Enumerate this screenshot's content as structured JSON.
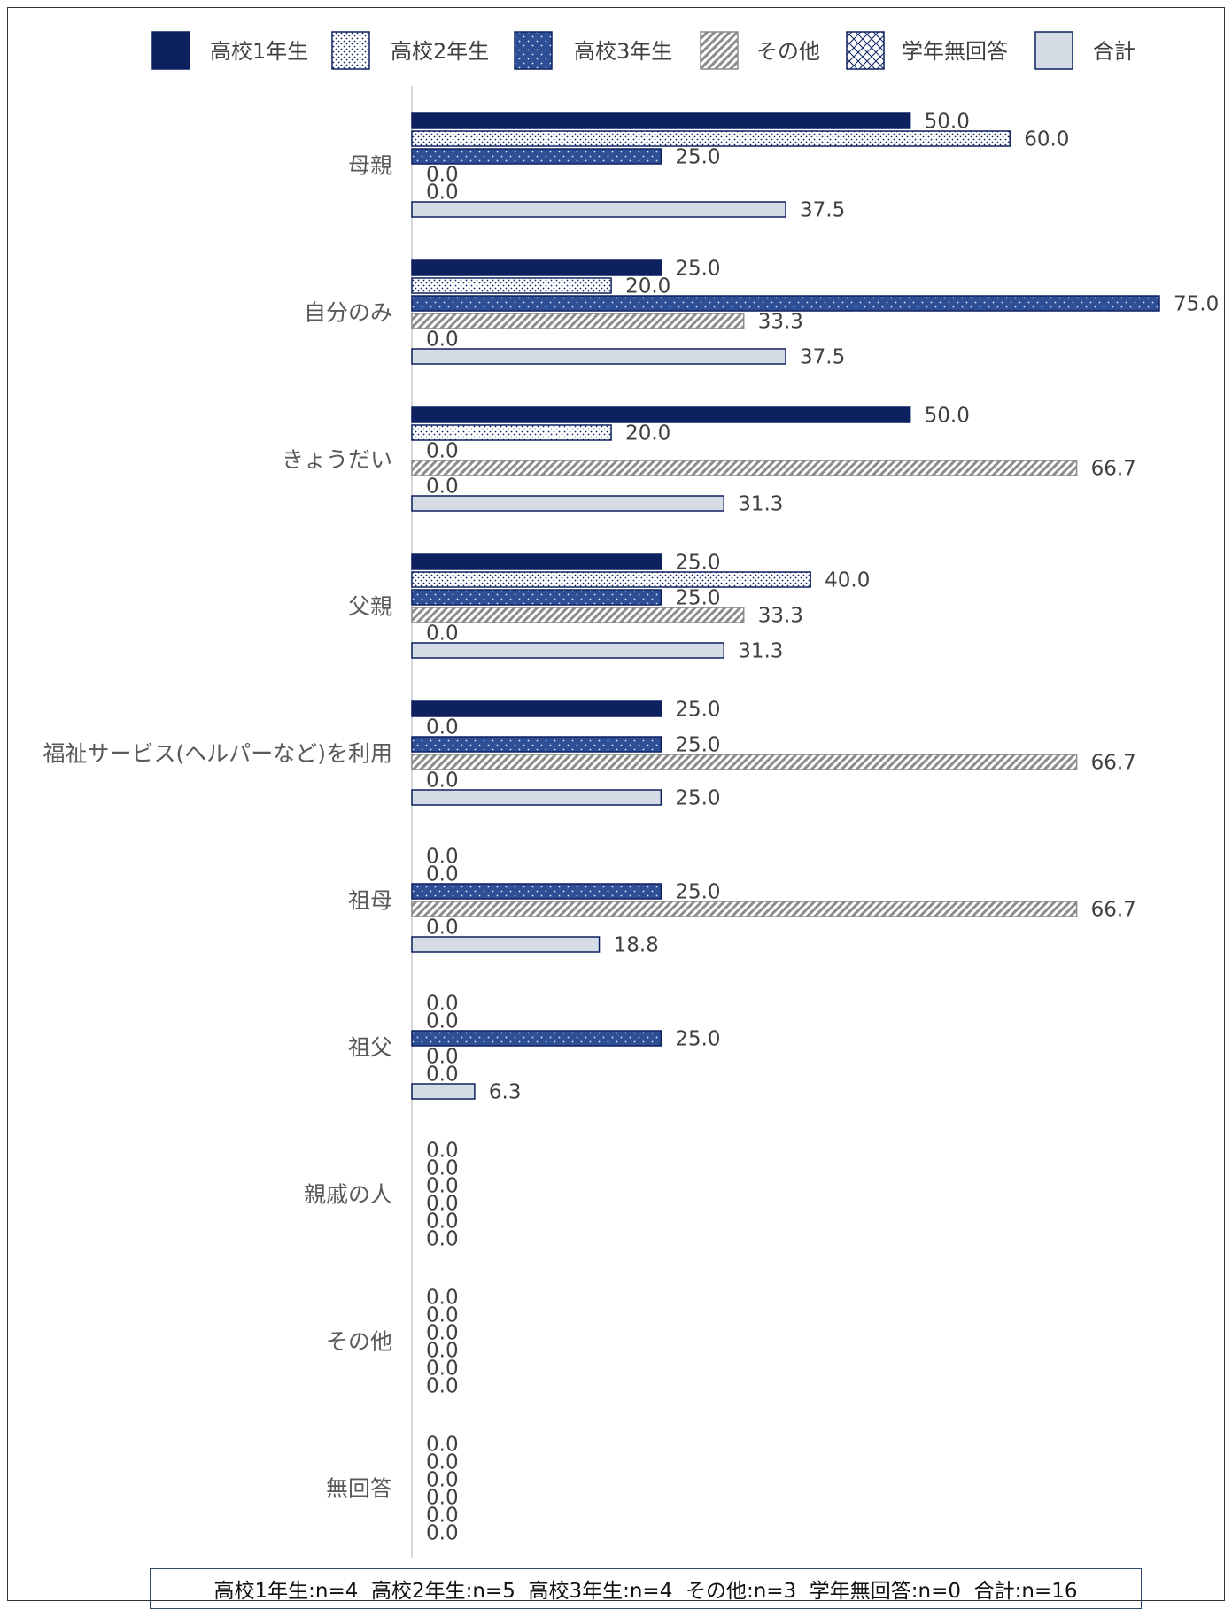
{
  "chart_data": {
    "type": "bar",
    "orientation": "horizontal",
    "categories": [
      "母親",
      "自分のみ",
      "きょうだい",
      "父親",
      "福祉サービス(ヘルパーなど)を利用",
      "祖母",
      "祖父",
      "親戚の人",
      "その他",
      "無回答"
    ],
    "series": [
      {
        "name": "高校1年生",
        "values": [
          50.0,
          25.0,
          50.0,
          25.0,
          25.0,
          0.0,
          0.0,
          0.0,
          0.0,
          0.0
        ]
      },
      {
        "name": "高校2年生",
        "values": [
          60.0,
          20.0,
          20.0,
          40.0,
          0.0,
          0.0,
          0.0,
          0.0,
          0.0,
          0.0
        ]
      },
      {
        "name": "高校3年生",
        "values": [
          25.0,
          75.0,
          0.0,
          25.0,
          25.0,
          25.0,
          25.0,
          0.0,
          0.0,
          0.0
        ]
      },
      {
        "name": "その他",
        "values": [
          0.0,
          33.3,
          66.7,
          33.3,
          66.7,
          66.7,
          0.0,
          0.0,
          0.0,
          0.0
        ]
      },
      {
        "name": "学年無回答",
        "values": [
          0.0,
          0.0,
          0.0,
          0.0,
          0.0,
          0.0,
          0.0,
          0.0,
          0.0,
          0.0
        ]
      },
      {
        "name": "合計",
        "values": [
          37.5,
          37.5,
          31.3,
          31.3,
          25.0,
          18.8,
          6.3,
          0.0,
          0.0,
          0.0
        ]
      }
    ],
    "xlim": [
      0,
      75
    ],
    "value_format": "0.0",
    "legend_position": "top",
    "grid": false,
    "title": "",
    "xlabel": "",
    "ylabel": "",
    "colors": {
      "navy": "#0d2160",
      "blue": "#2e4f96",
      "gray": "#8c8c8c",
      "light": "#d6dce5",
      "white": "#ffffff"
    }
  },
  "footnote": "高校1年生:n=4  高校2年生:n=5  高校3年生:n=4  その他:n=3  学年無回答:n=0  合計:n=16"
}
